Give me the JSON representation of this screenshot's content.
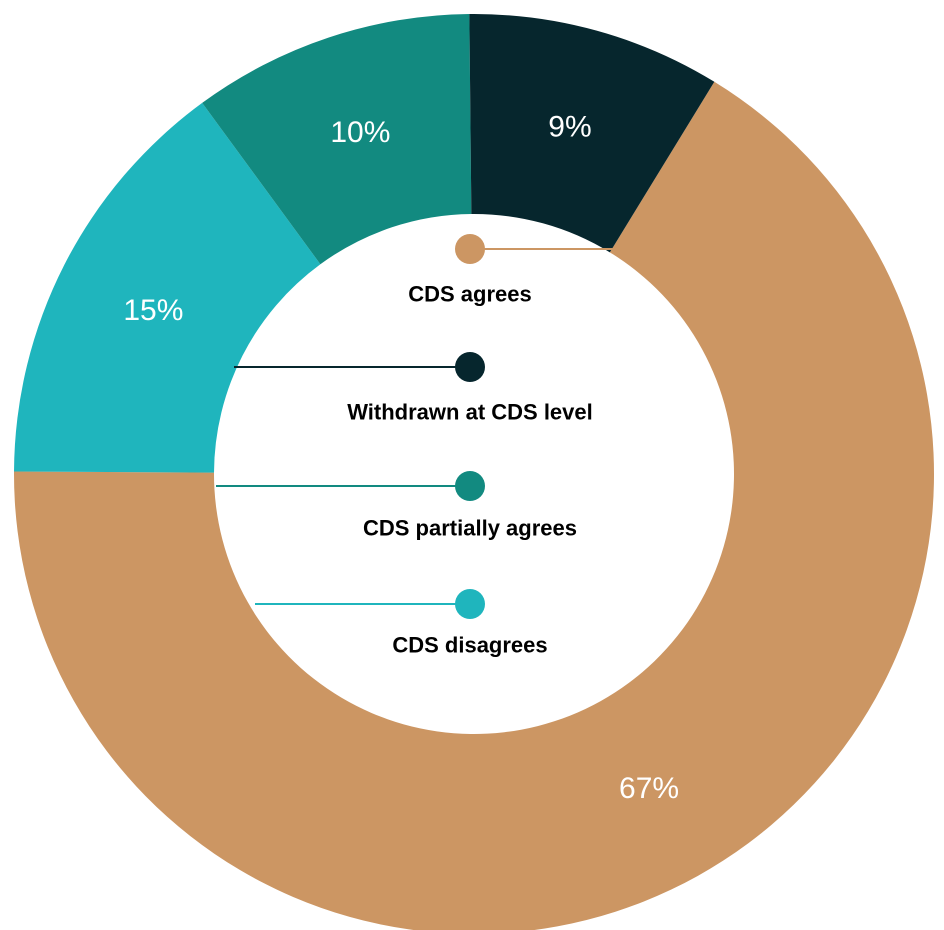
{
  "chart_data": {
    "type": "pie",
    "donut": true,
    "slices": [
      {
        "label": "CDS agrees",
        "value": 67,
        "display": "67%",
        "color": "#CC9663"
      },
      {
        "label": "CDS disagrees",
        "value": 15,
        "display": "15%",
        "color": "#1FB5BD"
      },
      {
        "label": "CDS partially agrees",
        "value": 10,
        "display": "10%",
        "color": "#128A80"
      },
      {
        "label": "Withdrawn at CDS level",
        "value": 9,
        "display": "9%",
        "color": "#06262D"
      }
    ],
    "legend_placement": "center"
  }
}
